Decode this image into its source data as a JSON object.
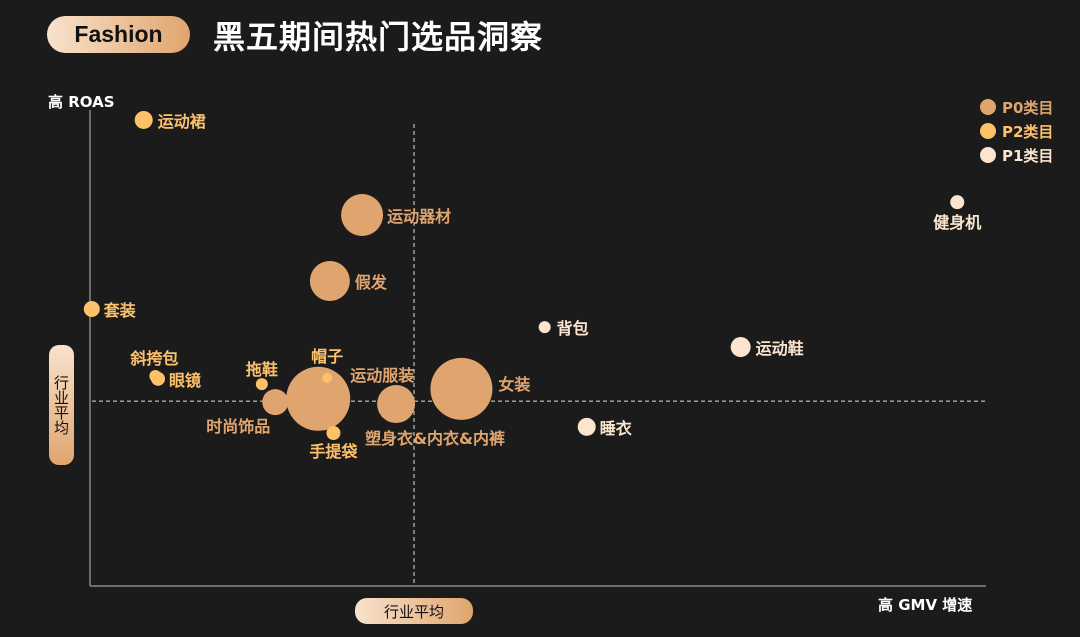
{
  "header": {
    "brand": "Fashion",
    "title": "黑五期间热门选品洞察"
  },
  "colors": {
    "background": "#1b1b1b",
    "P0": "#e0a56e",
    "P2": "#fdc16a",
    "P1": "#fbe5ce",
    "axis": "#888888"
  },
  "chart_data": {
    "type": "scatter",
    "subtype": "bubble",
    "title": "",
    "xlabel": "高 GMV 增速",
    "ylabel": "高 ROAS",
    "xlim": [
      0,
      100
    ],
    "ylim": [
      0,
      100
    ],
    "grid": false,
    "reference_lines": {
      "x": 36.2,
      "y": 38.7,
      "x_label": "行业平均",
      "y_label": "行业平均",
      "style": "dashed"
    },
    "legend": {
      "placement": "top-right",
      "entries": [
        {
          "name": "P0类目",
          "key": "P0"
        },
        {
          "name": "P2类目",
          "key": "P2"
        },
        {
          "name": "P1类目",
          "key": "P1"
        }
      ]
    },
    "points": [
      {
        "label": "运动裙",
        "x": 6.0,
        "y": 97.9,
        "size": 9,
        "category": "P2"
      },
      {
        "label": "运动器材",
        "x": 30.4,
        "y": 77.9,
        "size": 21,
        "category": "P0"
      },
      {
        "label": "假发",
        "x": 26.8,
        "y": 64.0,
        "size": 20,
        "category": "P0"
      },
      {
        "label": "套装",
        "x": 0.2,
        "y": 58.1,
        "size": 8,
        "category": "P2"
      },
      {
        "label": "斜挎包",
        "x": 7.3,
        "y": 44.0,
        "size": 6,
        "category": "P2"
      },
      {
        "label": "眼镜",
        "x": 7.6,
        "y": 43.4,
        "size": 7,
        "category": "P2"
      },
      {
        "label": "拖鞋",
        "x": 19.2,
        "y": 42.3,
        "size": 6,
        "category": "P2"
      },
      {
        "label": "时尚饰品",
        "x": 20.7,
        "y": 38.5,
        "size": 13,
        "category": "P0"
      },
      {
        "label": "运动服装",
        "x": 25.5,
        "y": 39.2,
        "size": 32,
        "category": "P0"
      },
      {
        "label": "帽子",
        "x": 26.5,
        "y": 43.6,
        "size": 5,
        "category": "P2"
      },
      {
        "label": "手提袋",
        "x": 27.2,
        "y": 32.0,
        "size": 7,
        "category": "P2"
      },
      {
        "label": "塑身衣&内衣&内裤",
        "x": 34.2,
        "y": 38.1,
        "size": 19,
        "category": "P0"
      },
      {
        "label": "女装",
        "x": 41.5,
        "y": 41.3,
        "size": 31,
        "category": "P0"
      },
      {
        "label": "背包",
        "x": 50.8,
        "y": 54.3,
        "size": 6,
        "category": "P1"
      },
      {
        "label": "睡衣",
        "x": 55.5,
        "y": 33.3,
        "size": 9,
        "category": "P1"
      },
      {
        "label": "运动鞋",
        "x": 72.7,
        "y": 50.1,
        "size": 10,
        "category": "P1"
      },
      {
        "label": "健身机",
        "x": 96.9,
        "y": 80.6,
        "size": 7,
        "category": "P1"
      }
    ]
  }
}
